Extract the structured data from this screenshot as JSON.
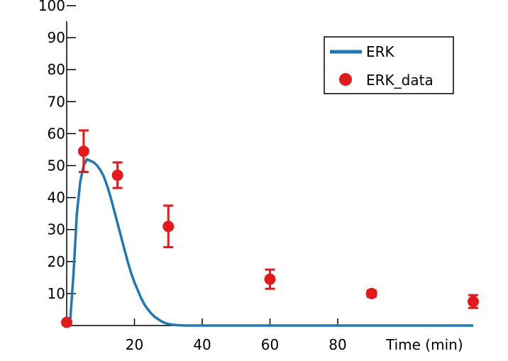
{
  "chart_data": {
    "type": "line",
    "title": "",
    "xlabel": "Time (min)",
    "ylabel": "",
    "xlim": [
      0,
      120
    ],
    "ylim": [
      0,
      100
    ],
    "xticks": [
      20,
      40,
      60,
      80
    ],
    "xtick_labels": [
      "20",
      "40",
      "60",
      "80"
    ],
    "yticks": [
      10,
      20,
      30,
      40,
      50,
      60,
      70,
      80,
      90,
      100
    ],
    "ytick_labels": [
      "10",
      "20",
      "30",
      "40",
      "50",
      "60",
      "70",
      "80",
      "90",
      "100"
    ],
    "grid": false,
    "legend": {
      "position": "top-right",
      "entries": [
        "ERK",
        "ERK_data"
      ]
    },
    "series": [
      {
        "name": "ERK",
        "type": "line",
        "color": "#1f77b4",
        "x": [
          0,
          1,
          2,
          3,
          4,
          5,
          6,
          7,
          8,
          9,
          10,
          11,
          12,
          13,
          14,
          15,
          16,
          17,
          18,
          19,
          20,
          21,
          22,
          23,
          24,
          25,
          26,
          27,
          28,
          29,
          30,
          31,
          32,
          33,
          34,
          35,
          36,
          40,
          50,
          60,
          70,
          80,
          90,
          100,
          110,
          120
        ],
        "y": [
          0,
          1,
          16,
          35,
          45,
          50,
          52,
          51.5,
          51,
          50,
          48.5,
          46.5,
          43.5,
          40,
          36,
          32,
          28,
          24,
          20,
          16.5,
          13.5,
          11,
          8.5,
          6.5,
          5,
          3.7,
          2.7,
          2,
          1.3,
          0.8,
          0.5,
          0.3,
          0.2,
          0.1,
          0.05,
          0,
          0,
          0,
          0,
          0,
          0,
          0,
          0,
          0,
          0,
          0
        ]
      },
      {
        "name": "ERK_data",
        "type": "scatter",
        "color": "#e31a1c",
        "x": [
          0,
          5,
          15,
          30,
          60,
          90,
          120
        ],
        "y": [
          1,
          54.5,
          47,
          31,
          14.5,
          10,
          7.5
        ],
        "error": [
          0.5,
          6.5,
          4,
          6.5,
          3,
          1,
          2
        ]
      }
    ]
  }
}
